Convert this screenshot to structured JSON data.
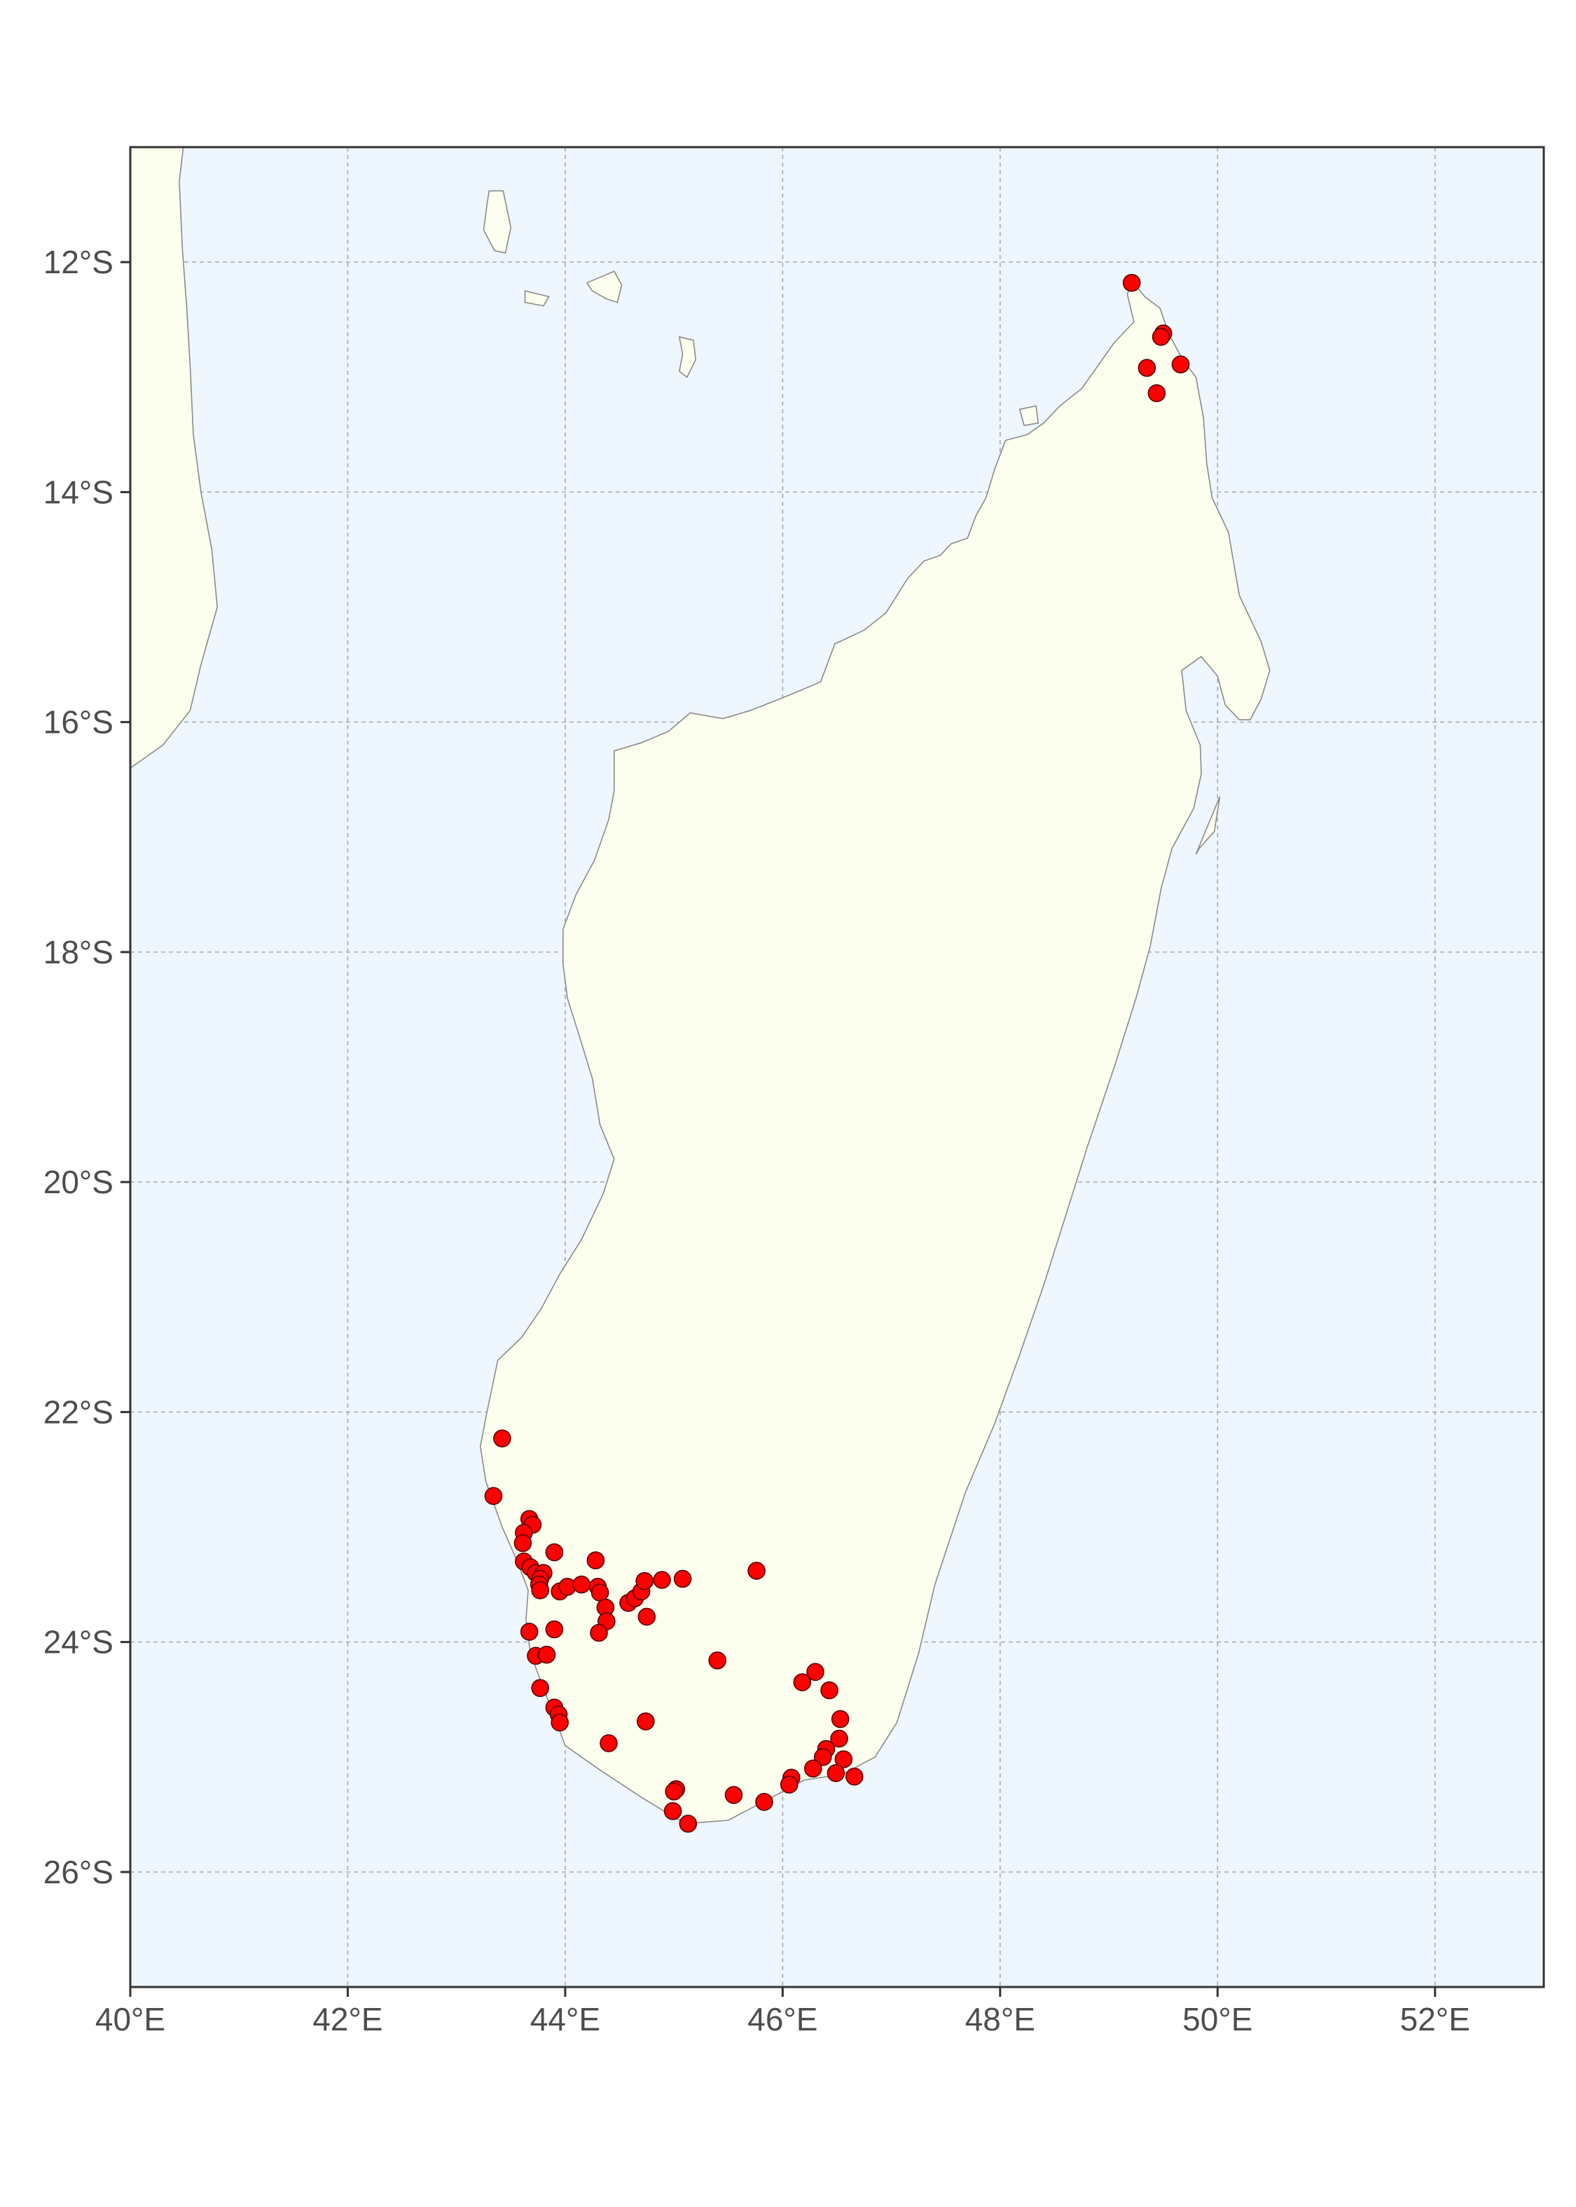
{
  "chart_data": {
    "type": "scatter",
    "title": "",
    "xlabel": "",
    "ylabel": "",
    "xlim": [
      40,
      53
    ],
    "ylim": [
      -27,
      -11
    ],
    "x_ticks": [
      {
        "value": 40,
        "label": "40°E"
      },
      {
        "value": 42,
        "label": "42°E"
      },
      {
        "value": 44,
        "label": "44°E"
      },
      {
        "value": 46,
        "label": "46°E"
      },
      {
        "value": 48,
        "label": "48°E"
      },
      {
        "value": 50,
        "label": "50°E"
      },
      {
        "value": 52,
        "label": "52°E"
      }
    ],
    "y_ticks": [
      {
        "value": -12,
        "label": "12°S"
      },
      {
        "value": -14,
        "label": "14°S"
      },
      {
        "value": -16,
        "label": "16°S"
      },
      {
        "value": -18,
        "label": "18°S"
      },
      {
        "value": -20,
        "label": "20°S"
      },
      {
        "value": -22,
        "label": "22°S"
      },
      {
        "value": -24,
        "label": "24°S"
      },
      {
        "value": -26,
        "label": "26°S"
      }
    ],
    "grid": true,
    "legend": "none",
    "colors": {
      "ocean": "#eef6fe",
      "land": "#fdffee",
      "coastline": "#8a8a8a",
      "point_fill": "#ff0000",
      "point_stroke": "#5a0000",
      "grid": "#a9a9b8",
      "axis": "#333333"
    },
    "points": [
      {
        "x": 49.21,
        "y": -12.18
      },
      {
        "x": 49.5,
        "y": -12.62
      },
      {
        "x": 49.48,
        "y": -12.65
      },
      {
        "x": 49.35,
        "y": -12.92
      },
      {
        "x": 49.66,
        "y": -12.89
      },
      {
        "x": 49.44,
        "y": -13.14
      },
      {
        "x": 43.42,
        "y": -22.23
      },
      {
        "x": 43.34,
        "y": -22.73
      },
      {
        "x": 43.67,
        "y": -22.93
      },
      {
        "x": 43.7,
        "y": -22.98
      },
      {
        "x": 43.62,
        "y": -23.05
      },
      {
        "x": 43.61,
        "y": -23.14
      },
      {
        "x": 43.62,
        "y": -23.3
      },
      {
        "x": 43.68,
        "y": -23.35
      },
      {
        "x": 43.73,
        "y": -23.4
      },
      {
        "x": 43.8,
        "y": -23.4
      },
      {
        "x": 43.77,
        "y": -23.45
      },
      {
        "x": 43.76,
        "y": -23.5
      },
      {
        "x": 43.77,
        "y": -23.55
      },
      {
        "x": 43.9,
        "y": -23.22
      },
      {
        "x": 43.95,
        "y": -23.56
      },
      {
        "x": 44.02,
        "y": -23.52
      },
      {
        "x": 44.15,
        "y": -23.5
      },
      {
        "x": 44.28,
        "y": -23.29
      },
      {
        "x": 44.3,
        "y": -23.52
      },
      {
        "x": 44.32,
        "y": -23.57
      },
      {
        "x": 44.37,
        "y": -23.7
      },
      {
        "x": 44.38,
        "y": -23.82
      },
      {
        "x": 44.31,
        "y": -23.92
      },
      {
        "x": 44.58,
        "y": -23.66
      },
      {
        "x": 44.64,
        "y": -23.62
      },
      {
        "x": 44.7,
        "y": -23.56
      },
      {
        "x": 44.73,
        "y": -23.47
      },
      {
        "x": 44.89,
        "y": -23.46
      },
      {
        "x": 45.08,
        "y": -23.45
      },
      {
        "x": 44.75,
        "y": -23.78
      },
      {
        "x": 45.76,
        "y": -23.38
      },
      {
        "x": 43.67,
        "y": -23.91
      },
      {
        "x": 43.9,
        "y": -23.89
      },
      {
        "x": 43.73,
        "y": -24.12
      },
      {
        "x": 43.83,
        "y": -24.11
      },
      {
        "x": 43.77,
        "y": -24.4
      },
      {
        "x": 43.9,
        "y": -24.57
      },
      {
        "x": 43.94,
        "y": -24.63
      },
      {
        "x": 43.95,
        "y": -24.7
      },
      {
        "x": 44.4,
        "y": -24.88
      },
      {
        "x": 44.74,
        "y": -24.69
      },
      {
        "x": 45.4,
        "y": -24.16
      },
      {
        "x": 46.18,
        "y": -24.35
      },
      {
        "x": 46.3,
        "y": -24.26
      },
      {
        "x": 46.43,
        "y": -24.42
      },
      {
        "x": 46.53,
        "y": -24.67
      },
      {
        "x": 46.52,
        "y": -24.84
      },
      {
        "x": 46.4,
        "y": -24.93
      },
      {
        "x": 46.37,
        "y": -25.0
      },
      {
        "x": 46.56,
        "y": -25.02
      },
      {
        "x": 46.28,
        "y": -25.1
      },
      {
        "x": 46.49,
        "y": -25.14
      },
      {
        "x": 46.66,
        "y": -25.17
      },
      {
        "x": 46.08,
        "y": -25.18
      },
      {
        "x": 46.06,
        "y": -25.24
      },
      {
        "x": 45.02,
        "y": -25.28
      },
      {
        "x": 45.0,
        "y": -25.3
      },
      {
        "x": 45.55,
        "y": -25.33
      },
      {
        "x": 45.83,
        "y": -25.39
      },
      {
        "x": 44.99,
        "y": -25.47
      },
      {
        "x": 45.13,
        "y": -25.58
      }
    ]
  }
}
